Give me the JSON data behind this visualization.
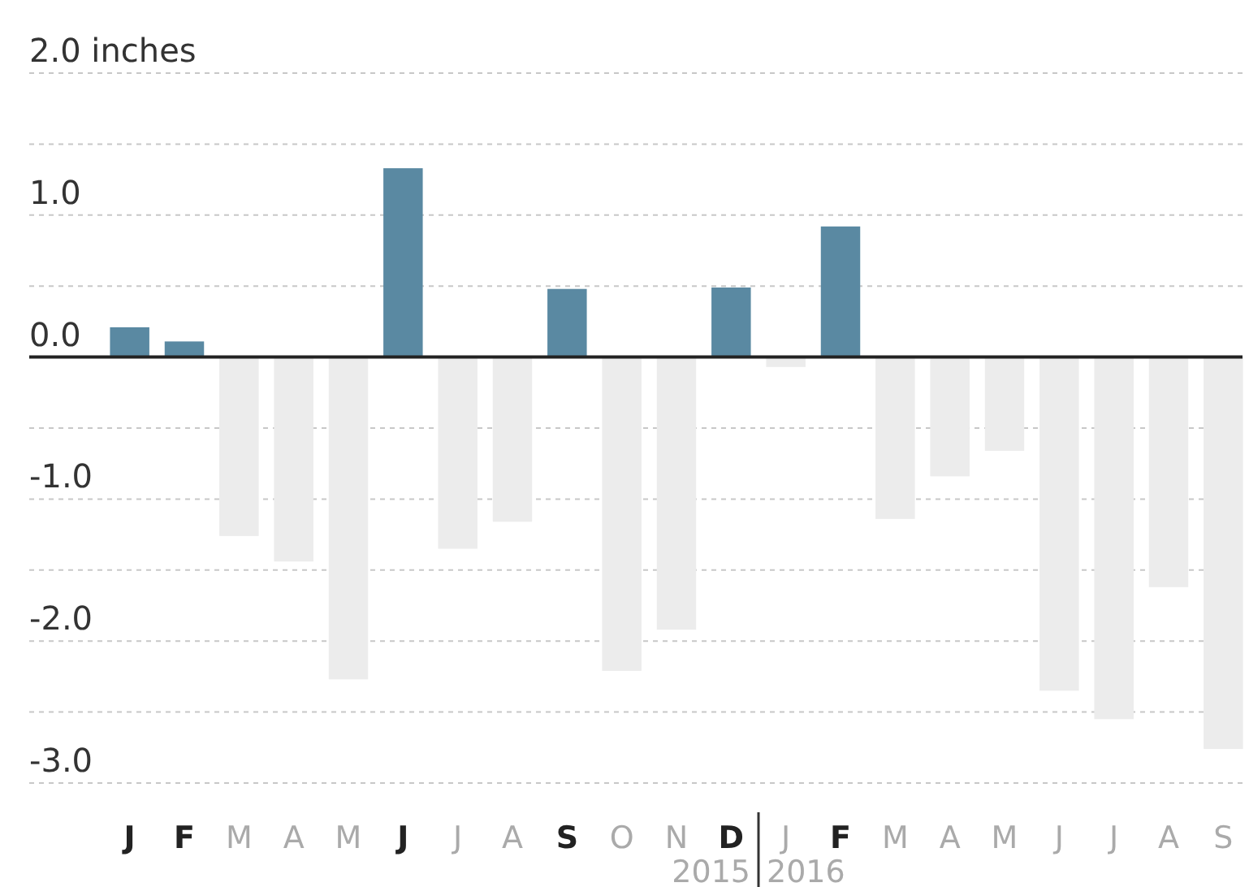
{
  "chart_data": {
    "type": "bar",
    "categories": [
      "J",
      "F",
      "M",
      "A",
      "M",
      "J",
      "J",
      "A",
      "S",
      "O",
      "N",
      "D",
      "J",
      "F",
      "M",
      "A",
      "M",
      "J",
      "J",
      "A",
      "S"
    ],
    "values": [
      0.21,
      0.11,
      -1.26,
      -1.44,
      -2.27,
      1.33,
      -1.35,
      -1.16,
      0.48,
      -2.21,
      -1.92,
      0.49,
      -0.07,
      0.92,
      -1.14,
      -0.84,
      -0.66,
      -2.35,
      -2.55,
      -1.62,
      -2.76
    ],
    "colors": [
      "#5a89a2",
      "#5a89a2",
      "#ececec",
      "#ececec",
      "#ececec",
      "#5a89a2",
      "#ececec",
      "#ececec",
      "#5a89a2",
      "#ececec",
      "#ececec",
      "#5a89a2",
      "#ececec",
      "#5a89a2",
      "#ececec",
      "#ececec",
      "#ececec",
      "#ececec",
      "#ececec",
      "#ececec",
      "#ececec"
    ],
    "ylim": [
      -3.0,
      2.0
    ],
    "yticks": [
      {
        "value": 2,
        "label": "2.0 inches"
      },
      {
        "value": 1.5,
        "label": null
      },
      {
        "value": 1,
        "label": "1.0"
      },
      {
        "value": 0.5,
        "label": null
      },
      {
        "value": 0,
        "label": "0.0"
      },
      {
        "value": -0.5,
        "label": null
      },
      {
        "value": -1,
        "label": "-1.0"
      },
      {
        "value": -1.5,
        "label": null
      },
      {
        "value": -2,
        "label": "-2.0"
      },
      {
        "value": -2.5,
        "label": null
      },
      {
        "value": -3,
        "label": "-3.0"
      }
    ],
    "grid": true,
    "annotations": [
      "2015",
      "2016"
    ]
  }
}
